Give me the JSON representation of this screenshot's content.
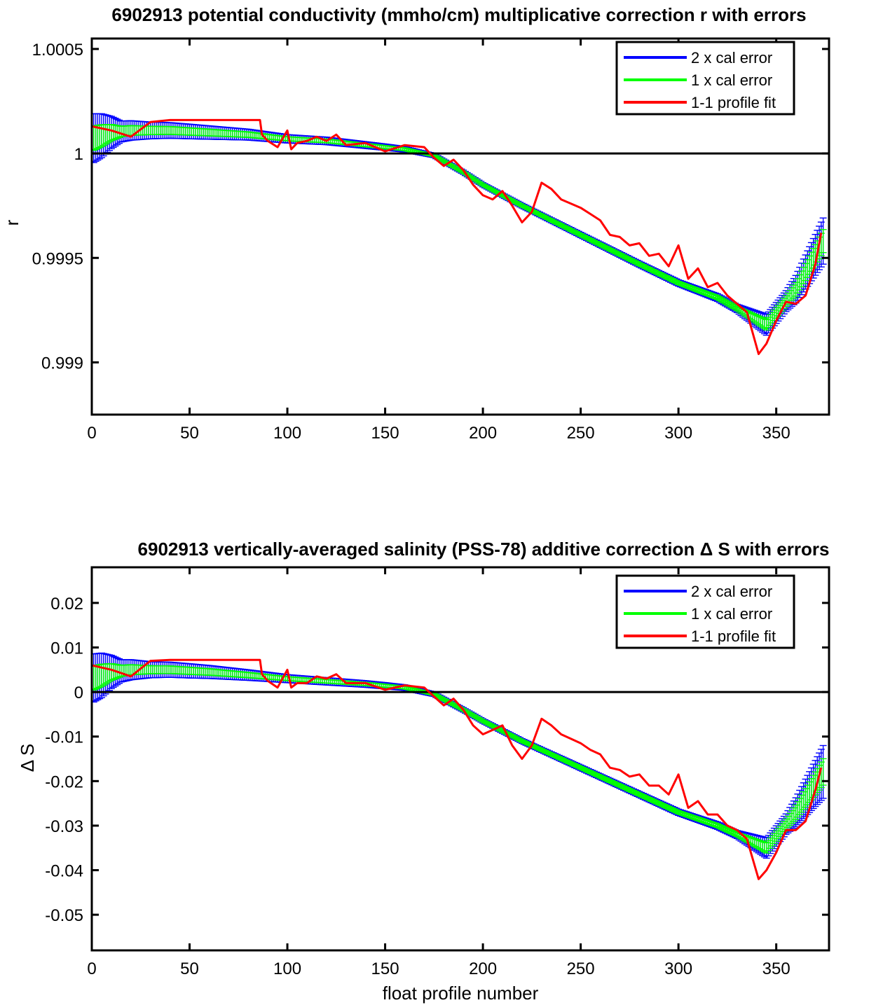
{
  "chart_data": [
    {
      "type": "line",
      "title": "6902913 potential conductivity (mmho/cm) multiplicative correction r with errors",
      "xlabel": "",
      "ylabel": "r",
      "xlim": [
        0,
        377
      ],
      "ylim": [
        0.99875,
        1.00055
      ],
      "xticks": [
        0,
        50,
        100,
        150,
        200,
        250,
        300,
        350
      ],
      "xtick_labels": [
        "0",
        "50",
        "100",
        "150",
        "200",
        "250",
        "300",
        "350"
      ],
      "yticks": [
        0.999,
        0.9995,
        1,
        1.0005
      ],
      "ytick_labels": [
        "0.999",
        "0.9995",
        "1",
        "1.0005"
      ],
      "reference_line": 1,
      "grid": false,
      "legend_position": "top-right",
      "series": [
        {
          "name": "2 x cal error",
          "color": "#0000ff",
          "kind": "errorbar",
          "multiplier": 2
        },
        {
          "name": "1 x cal error",
          "color": "#00ff00",
          "kind": "errorbar",
          "multiplier": 1
        },
        {
          "name": "1-1 profile fit",
          "color": "#ff0000",
          "kind": "line"
        }
      ],
      "fit_center": {
        "x": [
          0,
          10,
          20,
          40,
          60,
          80,
          100,
          120,
          140,
          160,
          175,
          190,
          200,
          220,
          250,
          280,
          300,
          320,
          345,
          360,
          377
        ],
        "y": [
          1.00007,
          1.0001,
          1.00011,
          1.00011,
          1.0001,
          1.00009,
          1.00007,
          1.00006,
          1.00004,
          1.00002,
          0.99999,
          0.99991,
          0.99985,
          0.99975,
          0.99961,
          0.99947,
          0.99938,
          0.99931,
          0.99918,
          0.99935,
          0.99963
        ]
      },
      "fit_error": {
        "x": [
          0,
          5,
          15,
          30,
          50,
          100,
          150,
          175,
          200,
          300,
          330,
          345,
          355,
          377
        ],
        "y": [
          0.00012,
          0.000105,
          5e-05,
          4e-05,
          3.5e-05,
          2e-05,
          1.5e-05,
          1e-05,
          1e-05,
          1.5e-05,
          2e-05,
          5e-05,
          5e-05,
          0.00012
        ]
      },
      "profile_fit": {
        "x": [
          0,
          10,
          20,
          30,
          40,
          60,
          86,
          87,
          90,
          95,
          100,
          102,
          105,
          110,
          115,
          120,
          125,
          130,
          140,
          150,
          160,
          170,
          175,
          180,
          185,
          190,
          195,
          200,
          205,
          210,
          215,
          220,
          225,
          230,
          235,
          240,
          245,
          250,
          255,
          260,
          265,
          270,
          275,
          280,
          285,
          290,
          295,
          300,
          305,
          310,
          315,
          320,
          325,
          330,
          335,
          341,
          345,
          350,
          355,
          360,
          365,
          370,
          373
        ],
        "y": [
          1.00013,
          1.00011,
          1.00008,
          1.00015,
          1.00016,
          1.00016,
          1.00016,
          1.00009,
          1.00006,
          1.00003,
          1.00011,
          1.00002,
          1.00005,
          1.00006,
          1.00008,
          1.00006,
          1.00009,
          1.00004,
          1.00005,
          1.00001,
          1.00004,
          1.00003,
          0.99998,
          0.99994,
          0.99997,
          0.99992,
          0.99985,
          0.9998,
          0.99978,
          0.99982,
          0.99975,
          0.99967,
          0.99972,
          0.99986,
          0.99983,
          0.99978,
          0.99976,
          0.99974,
          0.99971,
          0.99968,
          0.99961,
          0.9996,
          0.99956,
          0.99957,
          0.99951,
          0.99952,
          0.99946,
          0.99956,
          0.9994,
          0.99945,
          0.99936,
          0.99938,
          0.99932,
          0.99928,
          0.99924,
          0.99904,
          0.99909,
          0.9992,
          0.99929,
          0.99928,
          0.99932,
          0.99947,
          0.99962
        ]
      }
    },
    {
      "type": "line",
      "title": "6902913 vertically-averaged salinity (PSS-78) additive correction Δ S with errors",
      "xlabel": "float profile number",
      "ylabel": "Δ S",
      "xlim": [
        0,
        377
      ],
      "ylim": [
        -0.058,
        0.028
      ],
      "xticks": [
        0,
        50,
        100,
        150,
        200,
        250,
        300,
        350
      ],
      "xtick_labels": [
        "0",
        "50",
        "100",
        "150",
        "200",
        "250",
        "300",
        "350"
      ],
      "yticks": [
        -0.05,
        -0.04,
        -0.03,
        -0.02,
        -0.01,
        0,
        0.01,
        0.02
      ],
      "ytick_labels": [
        "-0.05",
        "-0.04",
        "-0.03",
        "-0.02",
        "-0.01",
        "0",
        "0.01",
        "0.02"
      ],
      "reference_line": 0,
      "grid": false,
      "legend_position": "top-right",
      "series": [
        {
          "name": "2 x cal error",
          "color": "#0000ff",
          "kind": "errorbar",
          "multiplier": 2
        },
        {
          "name": "1 x cal error",
          "color": "#00ff00",
          "kind": "errorbar",
          "multiplier": 1
        },
        {
          "name": "1-1 profile fit",
          "color": "#ff0000",
          "kind": "line"
        }
      ],
      "fit_center": {
        "x": [
          0,
          10,
          20,
          40,
          60,
          80,
          100,
          120,
          140,
          160,
          175,
          190,
          200,
          220,
          250,
          280,
          300,
          320,
          345,
          360,
          377
        ],
        "y": [
          0.003,
          0.0045,
          0.005,
          0.005,
          0.0045,
          0.0038,
          0.003,
          0.0024,
          0.0018,
          0.001,
          -0.0005,
          -0.004,
          -0.0065,
          -0.011,
          -0.017,
          -0.023,
          -0.027,
          -0.03,
          -0.035,
          -0.027,
          -0.016
        ]
      },
      "fit_error": {
        "x": [
          0,
          5,
          15,
          30,
          50,
          100,
          150,
          175,
          200,
          300,
          330,
          345,
          355,
          377
        ],
        "y": [
          0.0055,
          0.005,
          0.0025,
          0.0018,
          0.0016,
          0.0009,
          0.0007,
          0.0005,
          0.0005,
          0.0007,
          0.0009,
          0.0023,
          0.0023,
          0.0065
        ]
      },
      "profile_fit": {
        "x": [
          0,
          10,
          20,
          30,
          40,
          60,
          86,
          87,
          90,
          95,
          100,
          102,
          105,
          110,
          115,
          120,
          125,
          130,
          140,
          150,
          160,
          170,
          175,
          180,
          185,
          190,
          195,
          200,
          205,
          210,
          215,
          220,
          225,
          230,
          235,
          240,
          245,
          250,
          255,
          260,
          265,
          270,
          275,
          280,
          285,
          290,
          295,
          300,
          305,
          310,
          315,
          320,
          325,
          330,
          335,
          341,
          345,
          350,
          355,
          360,
          365,
          370,
          373
        ],
        "y": [
          0.006,
          0.005,
          0.0035,
          0.007,
          0.0072,
          0.0072,
          0.0072,
          0.004,
          0.0025,
          0.001,
          0.005,
          0.001,
          0.002,
          0.002,
          0.0035,
          0.003,
          0.004,
          0.002,
          0.002,
          0.0005,
          0.0015,
          0.001,
          -0.001,
          -0.003,
          -0.0015,
          -0.004,
          -0.0075,
          -0.0095,
          -0.0085,
          -0.0075,
          -0.012,
          -0.015,
          -0.012,
          -0.006,
          -0.0075,
          -0.0095,
          -0.0105,
          -0.0115,
          -0.013,
          -0.014,
          -0.017,
          -0.0175,
          -0.019,
          -0.0185,
          -0.021,
          -0.021,
          -0.023,
          -0.0185,
          -0.026,
          -0.0245,
          -0.0275,
          -0.0275,
          -0.03,
          -0.031,
          -0.033,
          -0.042,
          -0.04,
          -0.036,
          -0.031,
          -0.031,
          -0.029,
          -0.022,
          -0.017
        ]
      }
    }
  ]
}
